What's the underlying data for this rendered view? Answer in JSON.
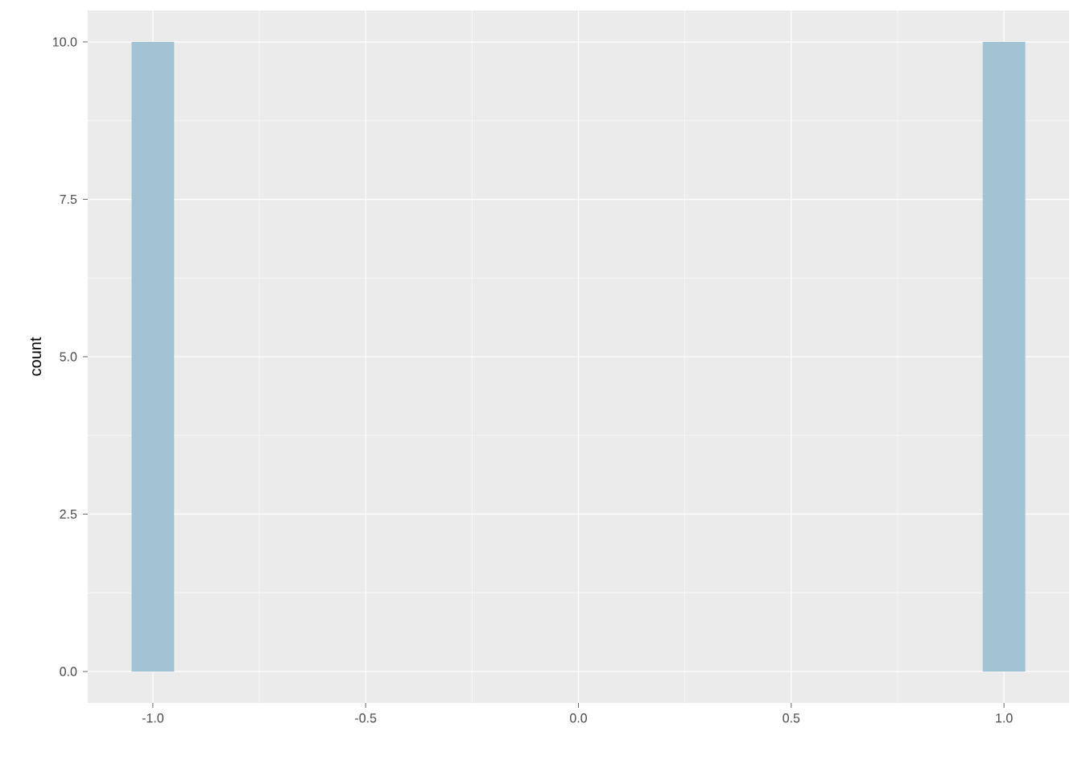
{
  "chart_data": {
    "type": "histogram",
    "ylabel": "count",
    "bins": [
      -1.05,
      -0.95,
      -0.85,
      -0.75,
      -0.65,
      -0.55,
      -0.45,
      -0.35,
      -0.25,
      -0.15,
      -0.05,
      0.05,
      0.15,
      0.25,
      0.35,
      0.45,
      0.55,
      0.65,
      0.75,
      0.85,
      0.95,
      1.05
    ],
    "values": [
      10,
      0,
      0,
      0,
      0,
      0,
      0,
      0,
      0,
      0,
      0,
      0,
      0,
      0,
      0,
      0,
      0,
      0,
      0,
      0,
      10
    ],
    "color": "#a1c3d3",
    "xlim": [
      -1.153,
      1.153
    ],
    "ylim": [
      -0.5,
      10.5
    ],
    "xticks": [
      {
        "value": -1,
        "label": "-1.0"
      },
      {
        "value": -0.5,
        "label": "-0.5"
      },
      {
        "value": 0,
        "label": "0.0"
      },
      {
        "value": 0.5,
        "label": "0.5"
      },
      {
        "value": 1,
        "label": "1.0"
      }
    ],
    "yticks": [
      {
        "value": 0,
        "label": "0.0"
      },
      {
        "value": 2.5,
        "label": "2.5"
      },
      {
        "value": 5,
        "label": "5.0"
      },
      {
        "value": 7.5,
        "label": "7.5"
      },
      {
        "value": 10,
        "label": "10.0"
      }
    ],
    "grid": true
  }
}
